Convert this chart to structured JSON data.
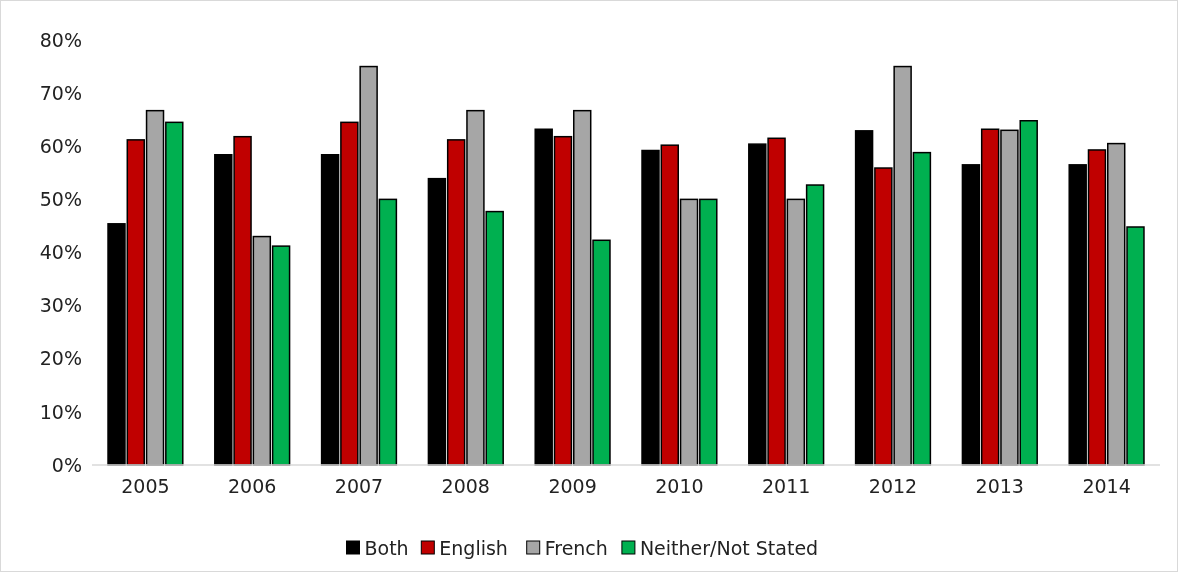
{
  "chart_data": {
    "type": "bar",
    "categories": [
      "2005",
      "2006",
      "2007",
      "2008",
      "2009",
      "2010",
      "2011",
      "2012",
      "2013",
      "2014"
    ],
    "series": [
      {
        "name": "Both",
        "color": "#000000",
        "values": [
          45.4,
          58.4,
          58.4,
          53.9,
          63.2,
          59.2,
          60.4,
          62.9,
          56.5,
          56.5
        ]
      },
      {
        "name": "English",
        "color": "#c00000",
        "values": [
          61.2,
          61.8,
          64.5,
          61.2,
          61.8,
          60.2,
          61.5,
          55.9,
          63.2,
          59.3
        ]
      },
      {
        "name": "French",
        "color": "#a6a6a6",
        "values": [
          66.7,
          43.0,
          75.0,
          66.7,
          66.7,
          50.0,
          50.0,
          75.0,
          63.0,
          60.5
        ]
      },
      {
        "name": "Neither/Not Stated",
        "color": "#00b050",
        "values": [
          64.5,
          41.2,
          50.0,
          47.7,
          42.3,
          50.0,
          52.7,
          58.8,
          64.8,
          44.8
        ]
      }
    ],
    "ylim": [
      0,
      80
    ],
    "yticks": [
      {
        "value": 0,
        "label": "0%"
      },
      {
        "value": 10,
        "label": "10%"
      },
      {
        "value": 20,
        "label": "20%"
      },
      {
        "value": 30,
        "label": "30%"
      },
      {
        "value": 40,
        "label": "40%"
      },
      {
        "value": 50,
        "label": "50%"
      },
      {
        "value": 60,
        "label": "60%"
      },
      {
        "value": 70,
        "label": "70%"
      },
      {
        "value": 80,
        "label": "80%"
      }
    ],
    "grid": false,
    "legend": "bottom"
  }
}
